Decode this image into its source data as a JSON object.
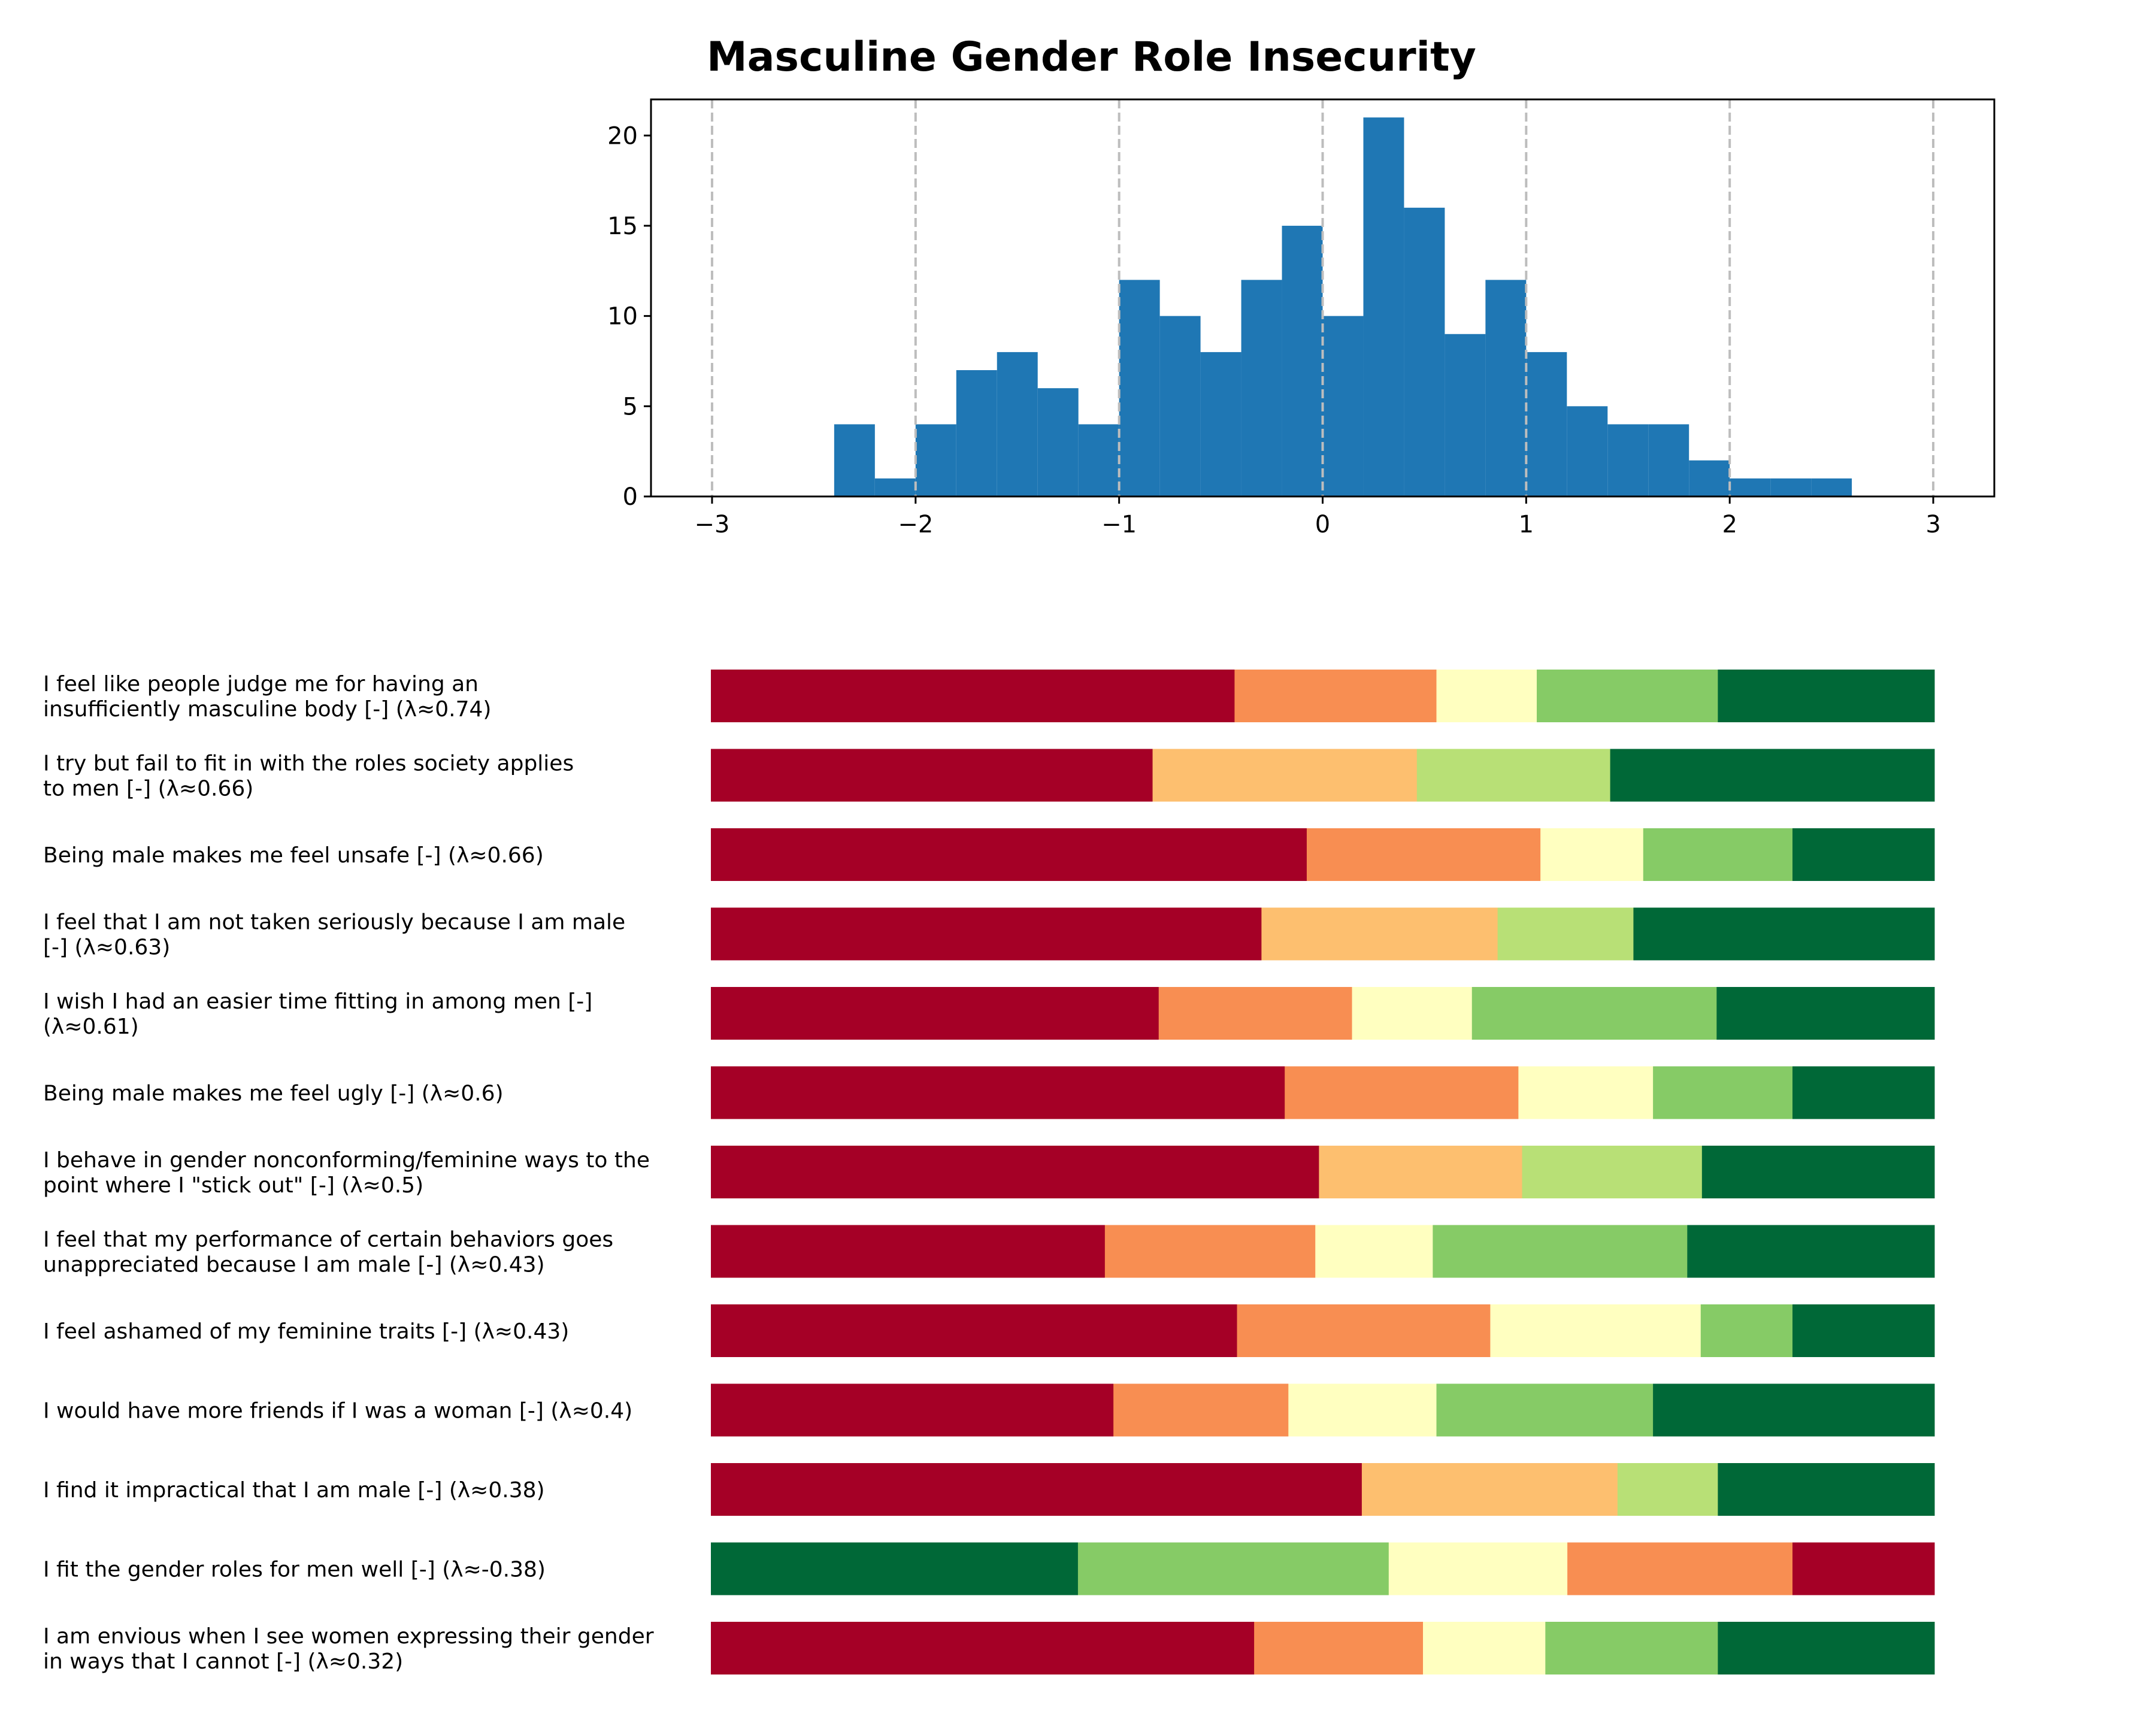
{
  "chart_data": [
    {
      "type": "histogram",
      "title": "Masculine Gender Role Insecurity",
      "xlabel": "",
      "ylabel": "",
      "xlim": [
        -3.3,
        3.3
      ],
      "ylim": [
        0,
        22
      ],
      "xticks": [
        -3,
        -2,
        -1,
        0,
        1,
        2,
        3
      ],
      "xtick_labels": [
        "−3",
        "−2",
        "−1",
        "0",
        "1",
        "2",
        "3"
      ],
      "yticks": [
        0,
        5,
        10,
        15,
        20
      ],
      "ytick_labels": [
        "0",
        "5",
        "10",
        "15",
        "20"
      ],
      "reference_lines_x": [
        -3,
        -2,
        -1,
        0,
        1,
        2,
        3
      ],
      "bin_edges": [
        -2.4,
        -2.2,
        -2.0,
        -1.8,
        -1.6,
        -1.4,
        -1.2,
        -1.0,
        -0.8,
        -0.6,
        -0.4,
        -0.2,
        0.0,
        0.2,
        0.4,
        0.6,
        0.8,
        1.0,
        1.2,
        1.4,
        1.6,
        1.8,
        2.0,
        2.2,
        2.4,
        2.6
      ],
      "counts": [
        4,
        1,
        4,
        7,
        8,
        6,
        4,
        12,
        10,
        8,
        12,
        15,
        10,
        21,
        16,
        9,
        12,
        8,
        5,
        4,
        4,
        2,
        1,
        1,
        1
      ],
      "color": "#1f77b4"
    },
    {
      "type": "stacked_bar",
      "orientation": "horizontal",
      "palette": [
        "#a50026",
        "#f88e52",
        "#fdbf6f",
        "#ffffc0",
        "#b8e076",
        "#86cb66",
        "#006837"
      ],
      "items": [
        {
          "label": "I feel like people judge me for having an insufficiently masculine body [-] (λ≈0.74)",
          "label_lines": [
            "I feel like people judge me for having an",
            "insufficiently masculine body [-] (λ≈0.74)"
          ],
          "segments": [
            {
              "share": 0.428,
              "color": "#a50026"
            },
            {
              "share": 0.165,
              "color": "#f88e52"
            },
            {
              "share": 0.082,
              "color": "#ffffc0"
            },
            {
              "share": 0.148,
              "color": "#86cb66"
            },
            {
              "share": 0.177,
              "color": "#006837"
            }
          ]
        },
        {
          "label": "I try but fail to fit in with the roles society applies to men [-] (λ≈0.66)",
          "label_lines": [
            "I try but fail to fit in with the roles society applies",
            "to men [-] (λ≈0.66)"
          ],
          "segments": [
            {
              "share": 0.361,
              "color": "#a50026"
            },
            {
              "share": 0.216,
              "color": "#fdbf6f"
            },
            {
              "share": 0.158,
              "color": "#b8e076"
            },
            {
              "share": 0.265,
              "color": "#006837"
            }
          ]
        },
        {
          "label": "Being male makes me feel unsafe [-] (λ≈0.66)",
          "label_lines": [
            "Being male makes me feel unsafe [-] (λ≈0.66)"
          ],
          "segments": [
            {
              "share": 0.487,
              "color": "#a50026"
            },
            {
              "share": 0.191,
              "color": "#f88e52"
            },
            {
              "share": 0.084,
              "color": "#ffffc0"
            },
            {
              "share": 0.122,
              "color": "#86cb66"
            },
            {
              "share": 0.116,
              "color": "#006837"
            }
          ]
        },
        {
          "label": "I feel that I am not taken seriously because I am male [-] (λ≈0.63)",
          "label_lines": [
            "I feel that I am not taken seriously because I am male",
            "[-] (λ≈0.63)"
          ],
          "segments": [
            {
              "share": 0.45,
              "color": "#a50026"
            },
            {
              "share": 0.193,
              "color": "#fdbf6f"
            },
            {
              "share": 0.111,
              "color": "#b8e076"
            },
            {
              "share": 0.246,
              "color": "#006837"
            }
          ]
        },
        {
          "label": "I wish I had an easier time fitting in among men [-] (λ≈0.61)",
          "label_lines": [
            "I wish I had an easier time fitting in among men [-]",
            "(λ≈0.61)"
          ],
          "segments": [
            {
              "share": 0.366,
              "color": "#a50026"
            },
            {
              "share": 0.158,
              "color": "#f88e52"
            },
            {
              "share": 0.098,
              "color": "#ffffc0"
            },
            {
              "share": 0.2,
              "color": "#86cb66"
            },
            {
              "share": 0.178,
              "color": "#006837"
            }
          ]
        },
        {
          "label": "Being male makes me feel ugly [-] (λ≈0.6)",
          "label_lines": [
            "Being male makes me feel ugly [-] (λ≈0.6)"
          ],
          "segments": [
            {
              "share": 0.469,
              "color": "#a50026"
            },
            {
              "share": 0.191,
              "color": "#f88e52"
            },
            {
              "share": 0.11,
              "color": "#ffffc0"
            },
            {
              "share": 0.114,
              "color": "#86cb66"
            },
            {
              "share": 0.116,
              "color": "#006837"
            }
          ]
        },
        {
          "label": "I behave in gender nonconforming/feminine ways to the point where I \"stick out\" [-] (λ≈0.5)",
          "label_lines": [
            "I behave in gender nonconforming/feminine ways to the",
            "point where I \"stick out\" [-] (λ≈0.5)"
          ],
          "segments": [
            {
              "share": 0.497,
              "color": "#a50026"
            },
            {
              "share": 0.166,
              "color": "#fdbf6f"
            },
            {
              "share": 0.147,
              "color": "#b8e076"
            },
            {
              "share": 0.19,
              "color": "#006837"
            }
          ]
        },
        {
          "label": "I feel that my performance of certain behaviors goes unappreciated because I am male [-] (λ≈0.43)",
          "label_lines": [
            "I feel that my performance of certain behaviors goes",
            "unappreciated because I am male [-] (λ≈0.43)"
          ],
          "segments": [
            {
              "share": 0.322,
              "color": "#a50026"
            },
            {
              "share": 0.172,
              "color": "#f88e52"
            },
            {
              "share": 0.096,
              "color": "#ffffc0"
            },
            {
              "share": 0.208,
              "color": "#86cb66"
            },
            {
              "share": 0.202,
              "color": "#006837"
            }
          ]
        },
        {
          "label": "I feel ashamed of my feminine traits [-] (λ≈0.43)",
          "label_lines": [
            "I feel ashamed of my feminine traits [-] (λ≈0.43)"
          ],
          "segments": [
            {
              "share": 0.43,
              "color": "#a50026"
            },
            {
              "share": 0.207,
              "color": "#f88e52"
            },
            {
              "share": 0.172,
              "color": "#ffffc0"
            },
            {
              "share": 0.075,
              "color": "#86cb66"
            },
            {
              "share": 0.116,
              "color": "#006837"
            }
          ]
        },
        {
          "label": "I would have more friends if I was a woman [-] (λ≈0.4)",
          "label_lines": [
            "I would have more friends if I was a woman [-] (λ≈0.4)"
          ],
          "segments": [
            {
              "share": 0.329,
              "color": "#a50026"
            },
            {
              "share": 0.143,
              "color": "#f88e52"
            },
            {
              "share": 0.121,
              "color": "#ffffc0"
            },
            {
              "share": 0.177,
              "color": "#86cb66"
            },
            {
              "share": 0.23,
              "color": "#006837"
            }
          ]
        },
        {
          "label": "I find it impractical that I am male [-] (λ≈0.38)",
          "label_lines": [
            "I find it impractical that I am male [-] (λ≈0.38)"
          ],
          "segments": [
            {
              "share": 0.532,
              "color": "#a50026"
            },
            {
              "share": 0.209,
              "color": "#fdbf6f"
            },
            {
              "share": 0.082,
              "color": "#b8e076"
            },
            {
              "share": 0.177,
              "color": "#006837"
            }
          ]
        },
        {
          "label": "I fit the gender roles for men well [-] (λ≈-0.38)",
          "label_lines": [
            "I fit the gender roles for men well [-] (λ≈-0.38)"
          ],
          "segments": [
            {
              "share": 0.3,
              "color": "#006837"
            },
            {
              "share": 0.254,
              "color": "#86cb66"
            },
            {
              "share": 0.146,
              "color": "#ffffc0"
            },
            {
              "share": 0.184,
              "color": "#f88e52"
            },
            {
              "share": 0.116,
              "color": "#a50026"
            }
          ]
        },
        {
          "label": "I am envious when I see women expressing their gender in ways that I cannot [-] (λ≈0.32)",
          "label_lines": [
            "I am envious when I see women expressing their gender",
            "in ways that I cannot [-] (λ≈0.32)"
          ],
          "segments": [
            {
              "share": 0.444,
              "color": "#a50026"
            },
            {
              "share": 0.138,
              "color": "#f88e52"
            },
            {
              "share": 0.1,
              "color": "#ffffc0"
            },
            {
              "share": 0.141,
              "color": "#86cb66"
            },
            {
              "share": 0.177,
              "color": "#006837"
            }
          ]
        }
      ]
    }
  ]
}
